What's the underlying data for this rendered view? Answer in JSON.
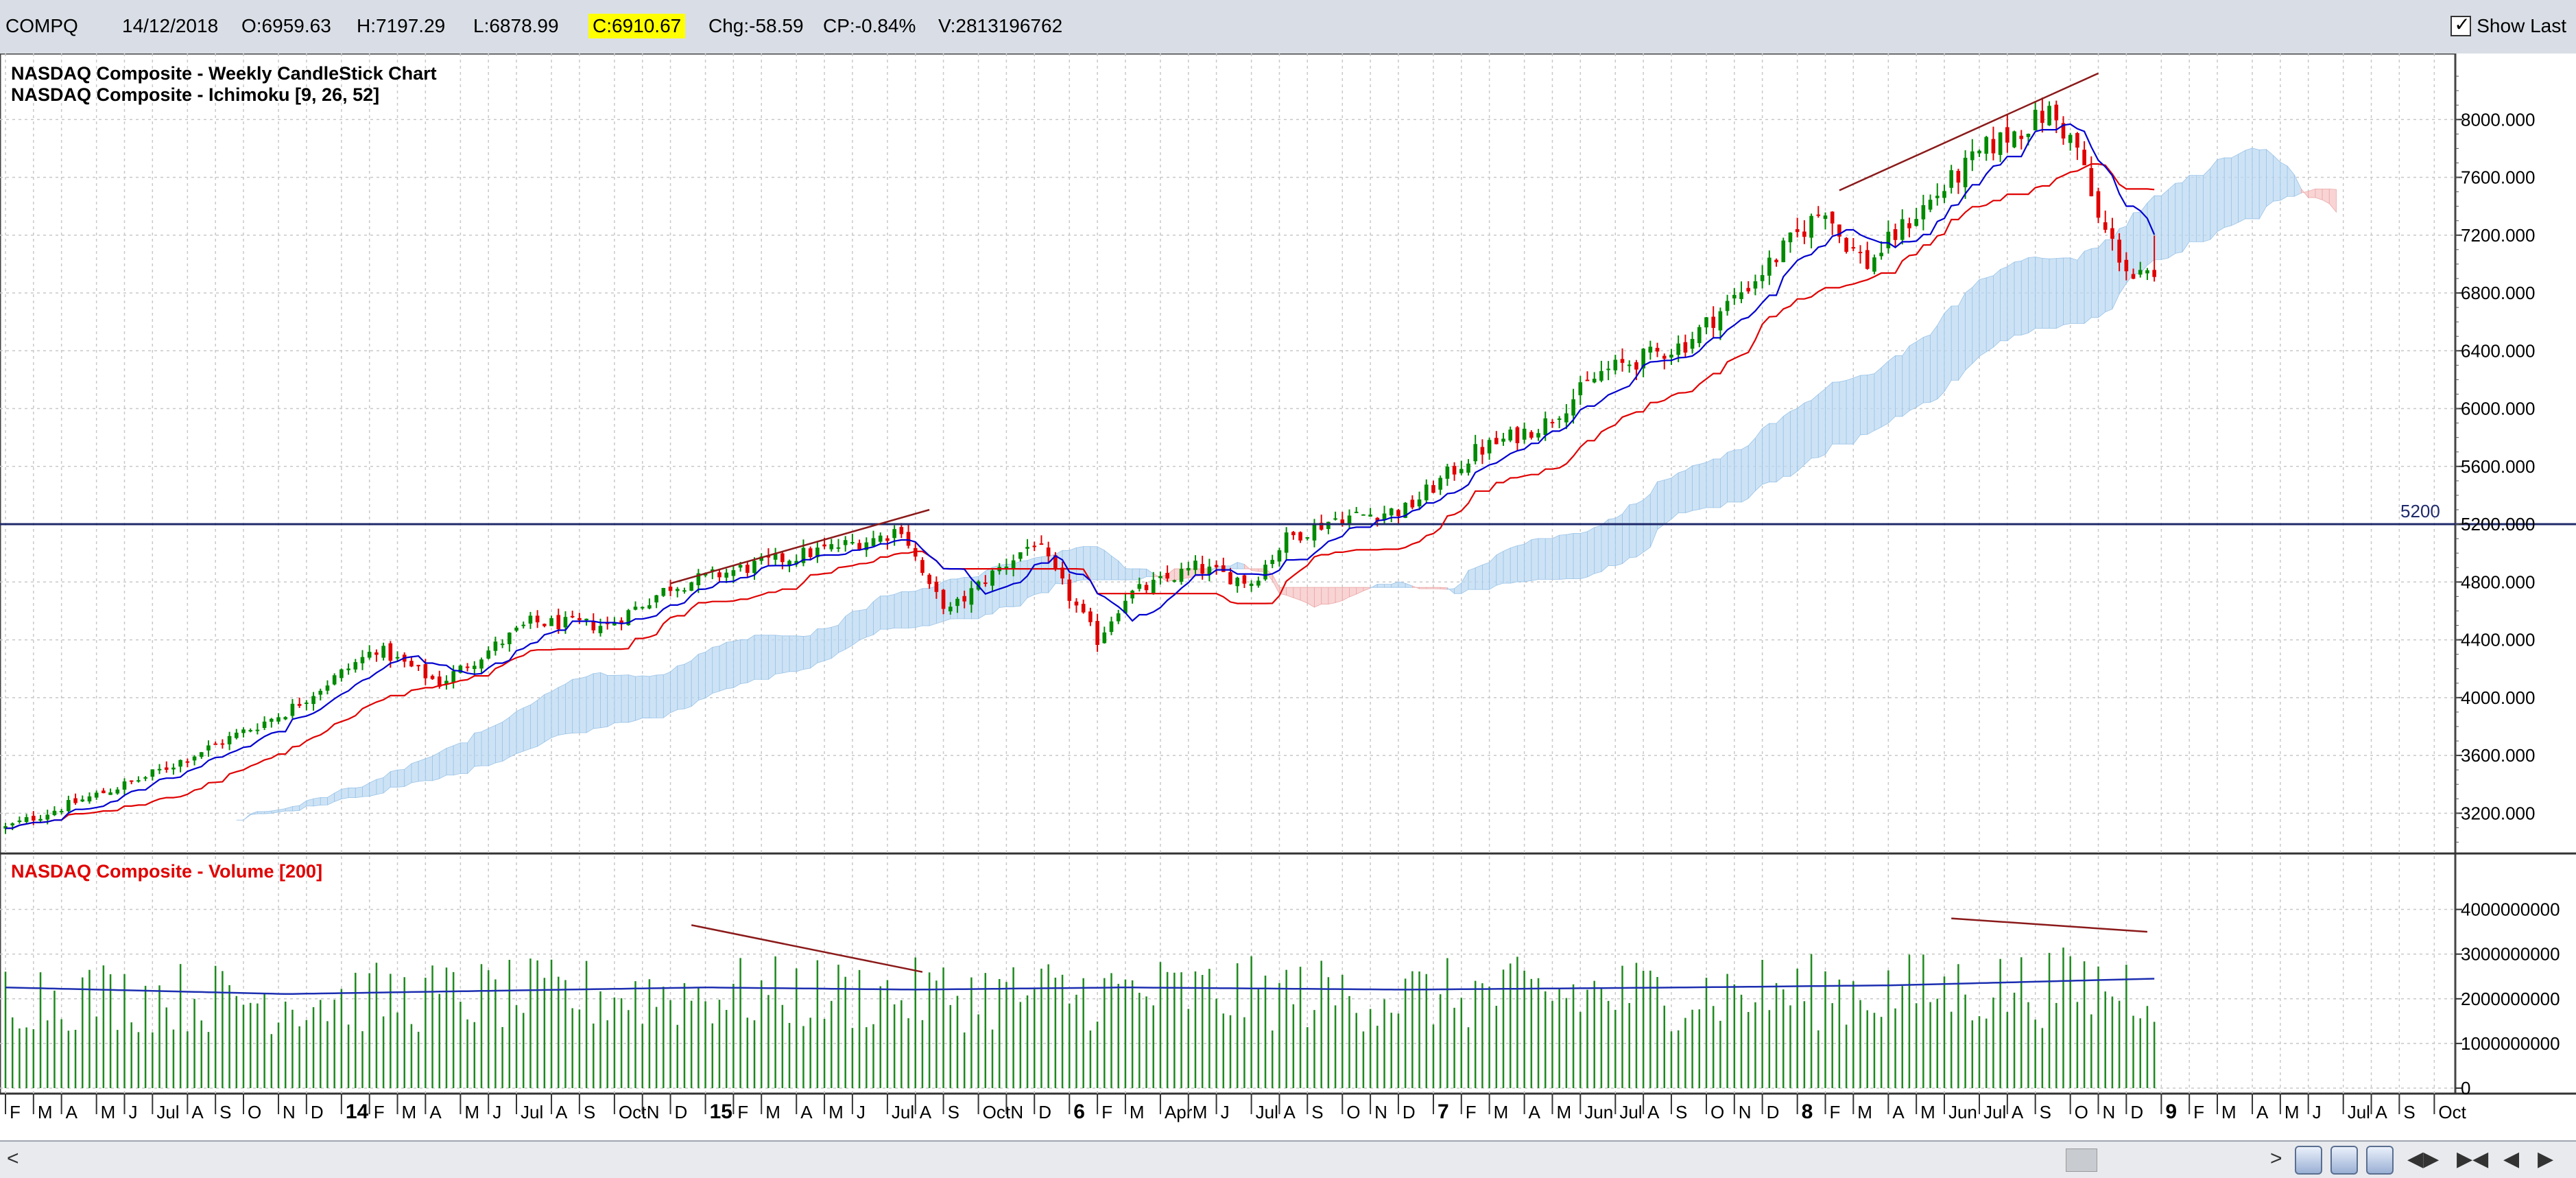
{
  "topbar": {
    "symbol": "COMPQ",
    "date": "14/12/2018",
    "open": "O:6959.63",
    "high": "H:7197.29",
    "low": "L:6878.99",
    "close": "C:6910.67",
    "change": "Chg:-58.59",
    "change_pct": "CP:-0.84%",
    "volume": "V:2813196762",
    "show_last_label": "Show Last",
    "show_last_checked": true
  },
  "chart_data": [
    {
      "type": "candlestick",
      "title": "NASDAQ Composite - Weekly CandleStick Chart",
      "subtitle": "NASDAQ Composite - Ichimoku [9, 26, 52]",
      "ylim": [
        2950,
        8400
      ],
      "yticks": [
        "3200.000",
        "3600.000",
        "4000.000",
        "4400.000",
        "4800.000",
        "5200.000",
        "5600.000",
        "6000.000",
        "6400.000",
        "6800.000",
        "7200.000",
        "7600.000",
        "8000.000"
      ],
      "horizontal_line": {
        "value": 5200,
        "label": "5200"
      },
      "close_anchors": [
        {
          "week": 0,
          "close": 3100
        },
        {
          "week": 20,
          "close": 3450
        },
        {
          "week": 40,
          "close": 3900
        },
        {
          "week": 53,
          "close": 4340
        },
        {
          "week": 62,
          "close": 4100
        },
        {
          "week": 75,
          "close": 4520
        },
        {
          "week": 86,
          "close": 4500
        },
        {
          "week": 95,
          "close": 4770
        },
        {
          "week": 110,
          "close": 4950
        },
        {
          "week": 125,
          "close": 5110
        },
        {
          "week": 128,
          "close": 5180
        },
        {
          "week": 132,
          "close": 4750
        },
        {
          "week": 135,
          "close": 4600
        },
        {
          "week": 140,
          "close": 4820
        },
        {
          "week": 147,
          "close": 5080
        },
        {
          "week": 152,
          "close": 4700
        },
        {
          "week": 156,
          "close": 4400
        },
        {
          "week": 160,
          "close": 4700
        },
        {
          "week": 170,
          "close": 4900
        },
        {
          "week": 178,
          "close": 4800
        },
        {
          "week": 183,
          "close": 5100
        },
        {
          "week": 190,
          "close": 5240
        },
        {
          "week": 200,
          "close": 5300
        },
        {
          "week": 210,
          "close": 5700
        },
        {
          "week": 220,
          "close": 5900
        },
        {
          "week": 228,
          "close": 6250
        },
        {
          "week": 240,
          "close": 6450
        },
        {
          "week": 250,
          "close": 6900
        },
        {
          "week": 260,
          "close": 7400
        },
        {
          "week": 262,
          "close": 7200
        },
        {
          "week": 266,
          "close": 7000
        },
        {
          "week": 272,
          "close": 7300
        },
        {
          "week": 283,
          "close": 7800
        },
        {
          "week": 292,
          "close": 8050
        },
        {
          "week": 296,
          "close": 7800
        },
        {
          "week": 299,
          "close": 7300
        },
        {
          "week": 304,
          "close": 6900
        },
        {
          "week": 307,
          "close": 6910
        }
      ],
      "trendlines": [
        {
          "from": {
            "week": 95,
            "value": 4790
          },
          "to": {
            "week": 132,
            "value": 5300
          }
        },
        {
          "from": {
            "week": 262,
            "value": 7510
          },
          "to": {
            "week": 299,
            "value": 8320
          }
        }
      ],
      "x_tick_labels": [
        "F",
        "M",
        "A",
        "M",
        "J",
        "Jul",
        "A",
        "S",
        "O",
        "N",
        "D",
        "14",
        "F",
        "M",
        "A",
        "M",
        "J",
        "Jul",
        "A",
        "S",
        "Oct",
        "N",
        "D",
        "15",
        "F",
        "M",
        "A",
        "M",
        "J",
        "Jul",
        "A",
        "S",
        "Oct",
        "N",
        "D",
        "6",
        "F",
        "M",
        "Apr",
        "M",
        "J",
        "Jul",
        "A",
        "S",
        "O",
        "N",
        "D",
        "7",
        "F",
        "M",
        "A",
        "M",
        "Jun",
        "Jul",
        "A",
        "S",
        "O",
        "N",
        "D",
        "8",
        "F",
        "M",
        "A",
        "M",
        "Jun",
        "Jul",
        "A",
        "S",
        "O",
        "N",
        "D",
        "9",
        "F",
        "M",
        "A",
        "M",
        "J",
        "Jul",
        "A",
        "S",
        "Oct"
      ],
      "x_tick_positions_week": [
        0,
        4,
        8,
        13,
        17,
        21,
        26,
        30,
        34,
        39,
        43,
        48,
        52,
        56,
        60,
        65,
        69,
        73,
        78,
        82,
        87,
        91,
        95,
        100,
        104,
        108,
        113,
        117,
        121,
        126,
        130,
        134,
        139,
        143,
        147,
        152,
        156,
        160,
        165,
        169,
        173,
        178,
        182,
        186,
        191,
        195,
        199,
        204,
        208,
        212,
        217,
        221,
        225,
        230,
        234,
        238,
        243,
        247,
        251,
        256,
        260,
        264,
        269,
        273,
        277,
        282,
        286,
        290,
        295,
        299,
        303,
        308,
        312,
        316,
        321,
        325,
        329,
        334,
        338,
        342,
        347
      ],
      "bold_tick_labels": [
        "14",
        "15",
        "6",
        "7",
        "8",
        "9"
      ]
    },
    {
      "type": "bar",
      "title": "NASDAQ Composite - Volume [200]",
      "ylim": [
        0,
        4500000000
      ],
      "yticks": [
        "0",
        "1000000000",
        "2000000000",
        "3000000000",
        "4000000000"
      ],
      "moving_average_period": 200,
      "volume_anchors": [
        {
          "week": 0,
          "volume": 2300000000
        },
        {
          "week": 40,
          "volume": 2150000000
        },
        {
          "week": 80,
          "volume": 2250000000
        },
        {
          "week": 100,
          "volume": 2300000000
        },
        {
          "week": 130,
          "volume": 2250000000
        },
        {
          "week": 160,
          "volume": 2300000000
        },
        {
          "week": 200,
          "volume": 2250000000
        },
        {
          "week": 240,
          "volume": 2300000000
        },
        {
          "week": 270,
          "volume": 2350000000
        },
        {
          "week": 307,
          "volume": 2500000000
        }
      ],
      "trendlines": [
        {
          "from": {
            "week": 98,
            "volume": 3650000000
          },
          "to": {
            "week": 131,
            "volume": 2600000000
          }
        },
        {
          "from": {
            "week": 278,
            "volume": 3800000000
          },
          "to": {
            "week": 306,
            "volume": 3500000000
          }
        }
      ]
    }
  ],
  "scrollbar": {
    "left_arrow": "<",
    "right_arrow": ">"
  }
}
